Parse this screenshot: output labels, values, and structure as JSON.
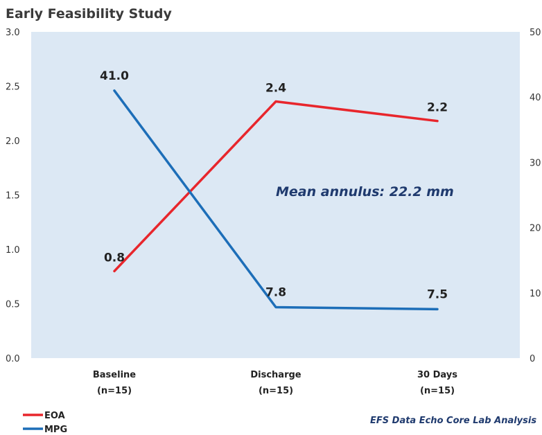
{
  "chart_data": {
    "type": "line",
    "title": "Early Feasibility Study",
    "categories": [
      [
        "Baseline",
        "(n=15)"
      ],
      [
        "Discharge",
        "(n=15)"
      ],
      [
        "30 Days",
        "(n=15)"
      ]
    ],
    "left_axis": {
      "min": 0,
      "max": 3,
      "ticks": [
        "0.0",
        "0.5",
        "1.0",
        "1.5",
        "2.0",
        "2.5",
        "3.0"
      ]
    },
    "right_axis": {
      "min": 0,
      "max": 50,
      "ticks": [
        "0",
        "10",
        "20",
        "30",
        "40",
        "50"
      ]
    },
    "series": [
      {
        "name": "EOA",
        "axis": "left",
        "color": "#e8262c",
        "values": [
          0.8,
          2.36,
          2.18
        ],
        "labels": [
          "0.8",
          "2.4",
          "2.2"
        ]
      },
      {
        "name": "MPG",
        "axis": "right",
        "color": "#1d6eb8",
        "values": [
          41.0,
          7.8,
          7.5
        ],
        "labels": [
          "41.0",
          "7.8",
          "7.5"
        ]
      }
    ],
    "annotation": "Mean annulus: 22.2 mm",
    "source": "EFS Data Echo Core Lab Analysis",
    "plot_background": "#dce8f4",
    "legend_position": "bottom-left",
    "grid": false
  }
}
